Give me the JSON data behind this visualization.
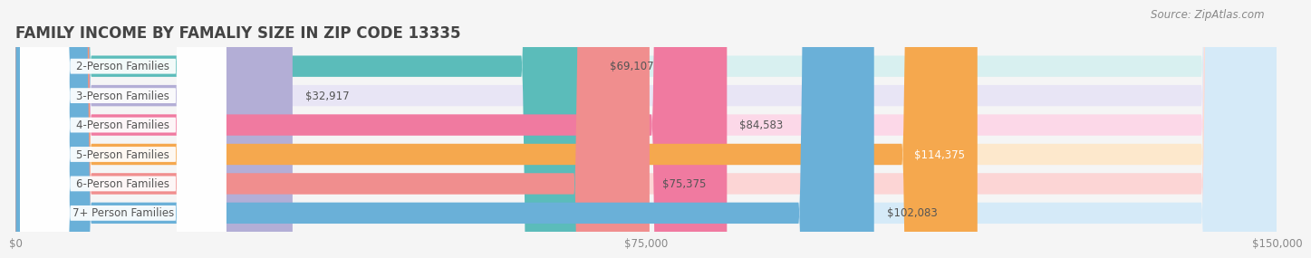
{
  "title": "FAMILY INCOME BY FAMALIY SIZE IN ZIP CODE 13335",
  "source": "Source: ZipAtlas.com",
  "categories": [
    "2-Person Families",
    "3-Person Families",
    "4-Person Families",
    "5-Person Families",
    "6-Person Families",
    "7+ Person Families"
  ],
  "values": [
    69107,
    32917,
    84583,
    114375,
    75375,
    102083
  ],
  "bar_colors": [
    "#5bbcba",
    "#b3aed6",
    "#f07aa0",
    "#f5a84e",
    "#f08e8e",
    "#6ab0d8"
  ],
  "bar_bg_colors": [
    "#d8f0f0",
    "#e8e5f5",
    "#fcd8e8",
    "#fde8cc",
    "#fcd5d5",
    "#d5eaf8"
  ],
  "value_labels": [
    "$69,107",
    "$32,917",
    "$84,583",
    "$114,375",
    "$75,375",
    "$102,083"
  ],
  "xlim": [
    0,
    150000
  ],
  "xticks": [
    0,
    75000,
    150000
  ],
  "xticklabels": [
    "$0",
    "$75,000",
    "$150,000"
  ],
  "background_color": "#f5f5f5",
  "title_fontsize": 12,
  "label_fontsize": 8.5,
  "value_fontsize": 8.5,
  "source_fontsize": 8.5
}
